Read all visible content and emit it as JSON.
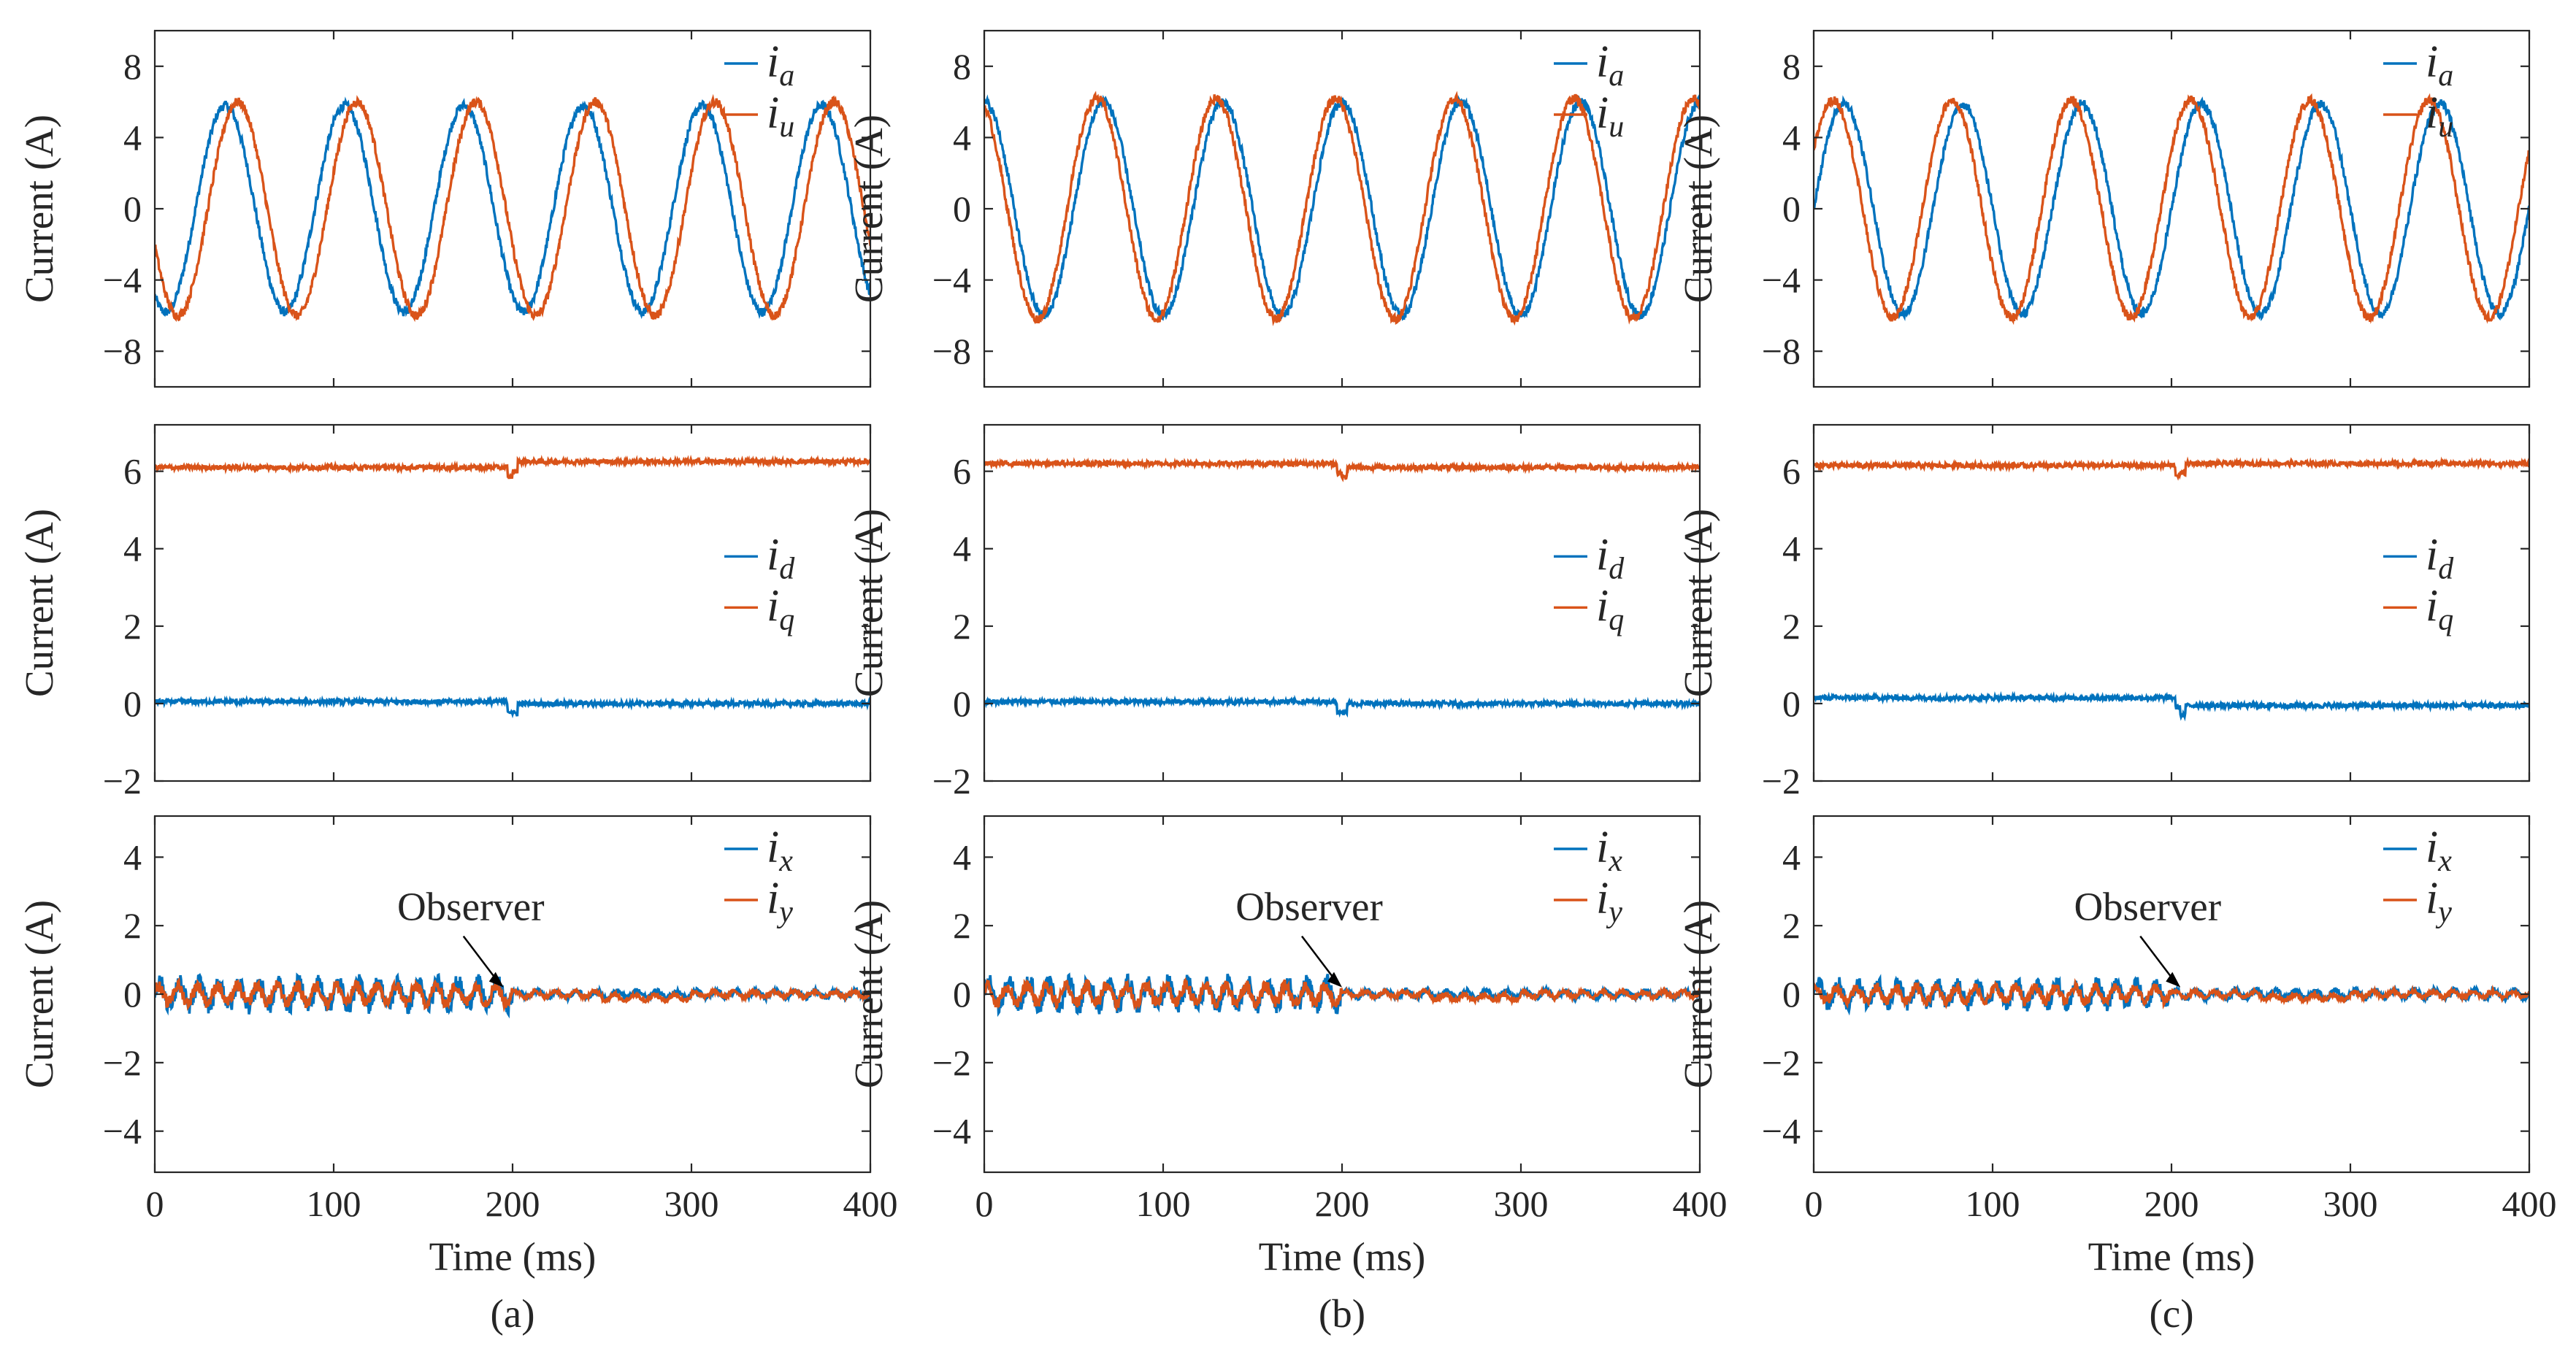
{
  "colors": {
    "series1": "#0072BD",
    "series2": "#D95319",
    "axis": "#262626"
  },
  "panels": [
    {
      "caption": "(a)",
      "annotation_text": "Observer",
      "ylabel": "Current (A)",
      "xlabel": "Time (ms)"
    },
    {
      "caption": "(b)",
      "annotation_text": "Observer",
      "ylabel": "Current (A)",
      "xlabel": "Time (ms)"
    },
    {
      "caption": "(c)",
      "annotation_text": "Observer",
      "ylabel": "Current (A)",
      "xlabel": "Time (ms)"
    }
  ],
  "chart_data": [
    {
      "panel": "(a)",
      "row": 1,
      "type": "line",
      "ylabel": "Current (A)",
      "xlim": [
        0,
        400
      ],
      "ylim": [
        -10,
        10
      ],
      "yticks": [
        -8,
        -4,
        0,
        4,
        8
      ],
      "xticks": [
        0,
        100,
        200,
        300,
        400
      ],
      "legend": "top-right",
      "series": [
        {
          "name": "i",
          "subscript": "a",
          "color": "#0072BD",
          "kind": "sine",
          "amplitude": 5.8,
          "frequency_hz": 15,
          "phase_deg": 237
        },
        {
          "name": "i",
          "subscript": "u",
          "color": "#D95319",
          "kind": "sine",
          "amplitude": 6.0,
          "frequency_hz": 15,
          "phase_deg": 200
        }
      ]
    },
    {
      "panel": "(a)",
      "row": 2,
      "type": "line",
      "ylabel": "Current (A)",
      "xlim": [
        0,
        400
      ],
      "ylim": [
        -2,
        7.2
      ],
      "yticks": [
        -2,
        0,
        2,
        4,
        6
      ],
      "xticks": [
        0,
        100,
        200,
        300,
        400
      ],
      "legend": "right",
      "series": [
        {
          "name": "i",
          "subscript": "d",
          "color": "#0072BD",
          "kind": "flat",
          "before": 0.05,
          "after": 0.0,
          "change_ms": 200
        },
        {
          "name": "i",
          "subscript": "q",
          "color": "#D95319",
          "kind": "flat",
          "before": 6.1,
          "after": 6.25,
          "change_ms": 200
        }
      ]
    },
    {
      "panel": "(a)",
      "row": 3,
      "type": "line",
      "ylabel": "Current (A)",
      "xlabel": "Time (ms)",
      "xlim": [
        0,
        400
      ],
      "ylim": [
        -5.2,
        5.2
      ],
      "yticks": [
        -4,
        -2,
        0,
        2,
        4
      ],
      "xticks": [
        0,
        100,
        200,
        300,
        400
      ],
      "legend": "top-right",
      "annotation": {
        "text": "Observer",
        "arrow_to": [
          195,
          0.2
        ]
      },
      "series": [
        {
          "name": "i",
          "subscript": "x",
          "color": "#0072BD",
          "kind": "ripple",
          "ripple_before": 0.35,
          "ripple_after": 0.1,
          "change_ms": 200
        },
        {
          "name": "i",
          "subscript": "y",
          "color": "#D95319",
          "kind": "ripple",
          "ripple_before": 0.25,
          "ripple_after": 0.08,
          "change_ms": 200
        }
      ]
    },
    {
      "panel": "(b)",
      "row": 1,
      "type": "line",
      "ylabel": "Current (A)",
      "xlim": [
        0,
        400
      ],
      "ylim": [
        -10,
        10
      ],
      "yticks": [
        -8,
        -4,
        0,
        4,
        8
      ],
      "xticks": [
        0,
        100,
        200,
        300,
        400
      ],
      "legend": "top-right",
      "series": [
        {
          "name": "i",
          "subscript": "a",
          "color": "#0072BD",
          "kind": "sine",
          "amplitude": 6.0,
          "frequency_hz": 15,
          "phase_deg": 90
        },
        {
          "name": "i",
          "subscript": "u",
          "color": "#D95319",
          "kind": "sine",
          "amplitude": 6.2,
          "frequency_hz": 15,
          "phase_deg": 110
        }
      ]
    },
    {
      "panel": "(b)",
      "row": 2,
      "type": "line",
      "ylabel": "Current (A)",
      "xlim": [
        0,
        400
      ],
      "ylim": [
        -2,
        7.2
      ],
      "yticks": [
        -2,
        0,
        2,
        4,
        6
      ],
      "xticks": [
        0,
        100,
        200,
        300,
        400
      ],
      "legend": "right",
      "series": [
        {
          "name": "i",
          "subscript": "d",
          "color": "#0072BD",
          "kind": "flat",
          "before": 0.05,
          "after": 0.0,
          "change_ms": 200
        },
        {
          "name": "i",
          "subscript": "q",
          "color": "#D95319",
          "kind": "flat",
          "before": 6.2,
          "after": 6.1,
          "change_ms": 200
        }
      ]
    },
    {
      "panel": "(b)",
      "row": 3,
      "type": "line",
      "ylabel": "Current (A)",
      "xlabel": "Time (ms)",
      "xlim": [
        0,
        400
      ],
      "ylim": [
        -5.2,
        5.2
      ],
      "yticks": [
        -4,
        -2,
        0,
        2,
        4
      ],
      "xticks": [
        0,
        100,
        200,
        300,
        400
      ],
      "legend": "top-right",
      "annotation": {
        "text": "Observer",
        "arrow_to": [
          200,
          0.2
        ]
      },
      "series": [
        {
          "name": "i",
          "subscript": "x",
          "color": "#0072BD",
          "kind": "ripple",
          "ripple_before": 0.35,
          "ripple_after": 0.1,
          "change_ms": 200
        },
        {
          "name": "i",
          "subscript": "y",
          "color": "#D95319",
          "kind": "ripple",
          "ripple_before": 0.25,
          "ripple_after": 0.08,
          "change_ms": 200
        }
      ]
    },
    {
      "panel": "(c)",
      "row": 1,
      "type": "line",
      "ylabel": "Current (A)",
      "xlim": [
        0,
        400
      ],
      "ylim": [
        -10,
        10
      ],
      "yticks": [
        -8,
        -4,
        0,
        4,
        8
      ],
      "xticks": [
        0,
        100,
        200,
        300,
        400
      ],
      "legend": "top-right",
      "series": [
        {
          "name": "i",
          "subscript": "a",
          "color": "#0072BD",
          "kind": "sine",
          "amplitude": 5.9,
          "frequency_hz": 15,
          "phase_deg": 0
        },
        {
          "name": "i",
          "subscript": "u",
          "color": "#D95319",
          "kind": "sine",
          "amplitude": 6.1,
          "frequency_hz": 15,
          "phase_deg": 32
        }
      ]
    },
    {
      "panel": "(c)",
      "row": 2,
      "type": "line",
      "ylabel": "Current (A)",
      "xlim": [
        0,
        400
      ],
      "ylim": [
        -2,
        7.2
      ],
      "yticks": [
        -2,
        0,
        2,
        4,
        6
      ],
      "xticks": [
        0,
        100,
        200,
        300,
        400
      ],
      "legend": "right",
      "series": [
        {
          "name": "i",
          "subscript": "d",
          "color": "#0072BD",
          "kind": "flat",
          "before": 0.15,
          "after": -0.05,
          "change_ms": 205
        },
        {
          "name": "i",
          "subscript": "q",
          "color": "#D95319",
          "kind": "flat",
          "before": 6.15,
          "after": 6.2,
          "change_ms": 205
        }
      ]
    },
    {
      "panel": "(c)",
      "row": 3,
      "type": "line",
      "ylabel": "Current (A)",
      "xlabel": "Time (ms)",
      "xlim": [
        0,
        400
      ],
      "ylim": [
        -5.2,
        5.2
      ],
      "yticks": [
        -4,
        -2,
        0,
        2,
        4
      ],
      "xticks": [
        0,
        100,
        200,
        300,
        400
      ],
      "legend": "top-right",
      "annotation": {
        "text": "Observer",
        "arrow_to": [
          205,
          0.2
        ]
      },
      "series": [
        {
          "name": "i",
          "subscript": "x",
          "color": "#0072BD",
          "kind": "ripple",
          "ripple_before": 0.3,
          "ripple_after": 0.12,
          "change_ms": 200
        },
        {
          "name": "i",
          "subscript": "y",
          "color": "#D95319",
          "kind": "ripple",
          "ripple_before": 0.2,
          "ripple_after": 0.08,
          "change_ms": 200
        }
      ]
    }
  ]
}
